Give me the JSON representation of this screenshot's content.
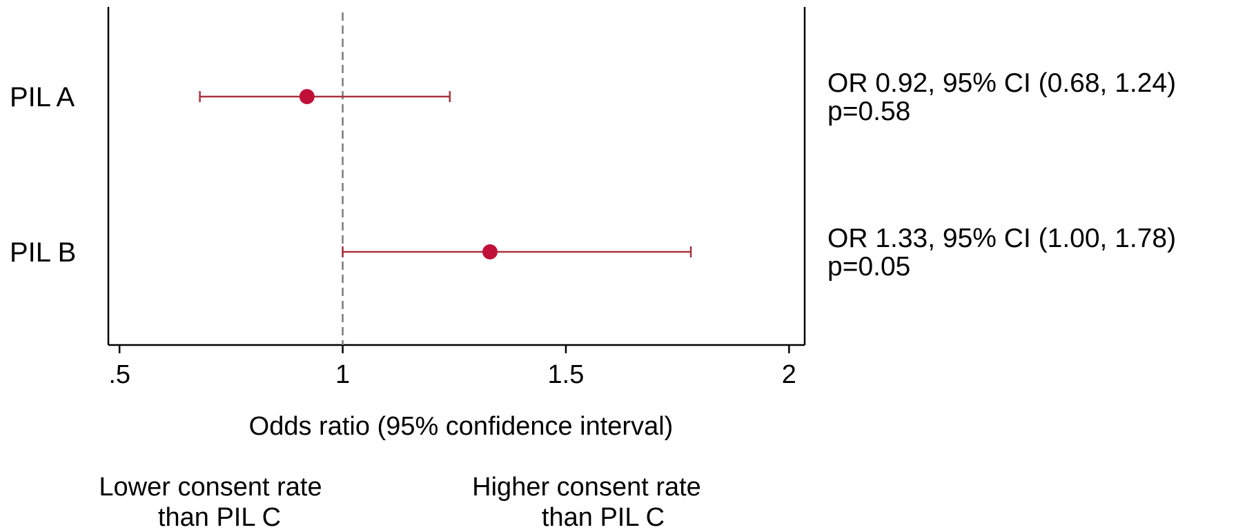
{
  "chart_data": {
    "type": "forest",
    "xlabel": "Odds ratio (95% confidence interval)",
    "xlim": [
      0.475,
      2.035
    ],
    "xticks": [
      0.5,
      1,
      1.5,
      2
    ],
    "xtick_labels": [
      ".5",
      "1",
      "1.5",
      "2"
    ],
    "reference_line": {
      "x": 1,
      "style": "dashed"
    },
    "grid": false,
    "marker_color": "#C0103A",
    "ci_color": "#A8323E",
    "rows": [
      {
        "label": "PIL A",
        "or": 0.92,
        "ci_low": 0.68,
        "ci_high": 1.24,
        "annotation_line1": "OR 0.92, 95% CI (0.68, 1.24)",
        "annotation_line2": "p=0.58"
      },
      {
        "label": "PIL B",
        "or": 1.33,
        "ci_low": 1.0,
        "ci_high": 1.78,
        "annotation_line1": "OR 1.33, 95% CI (1.00, 1.78)",
        "annotation_line2": "p=0.05"
      }
    ],
    "direction_labels": {
      "left_line1": "Lower consent rate",
      "left_line2": "than PIL C",
      "right_line1": "Higher consent rate",
      "right_line2": "than PIL C"
    }
  }
}
